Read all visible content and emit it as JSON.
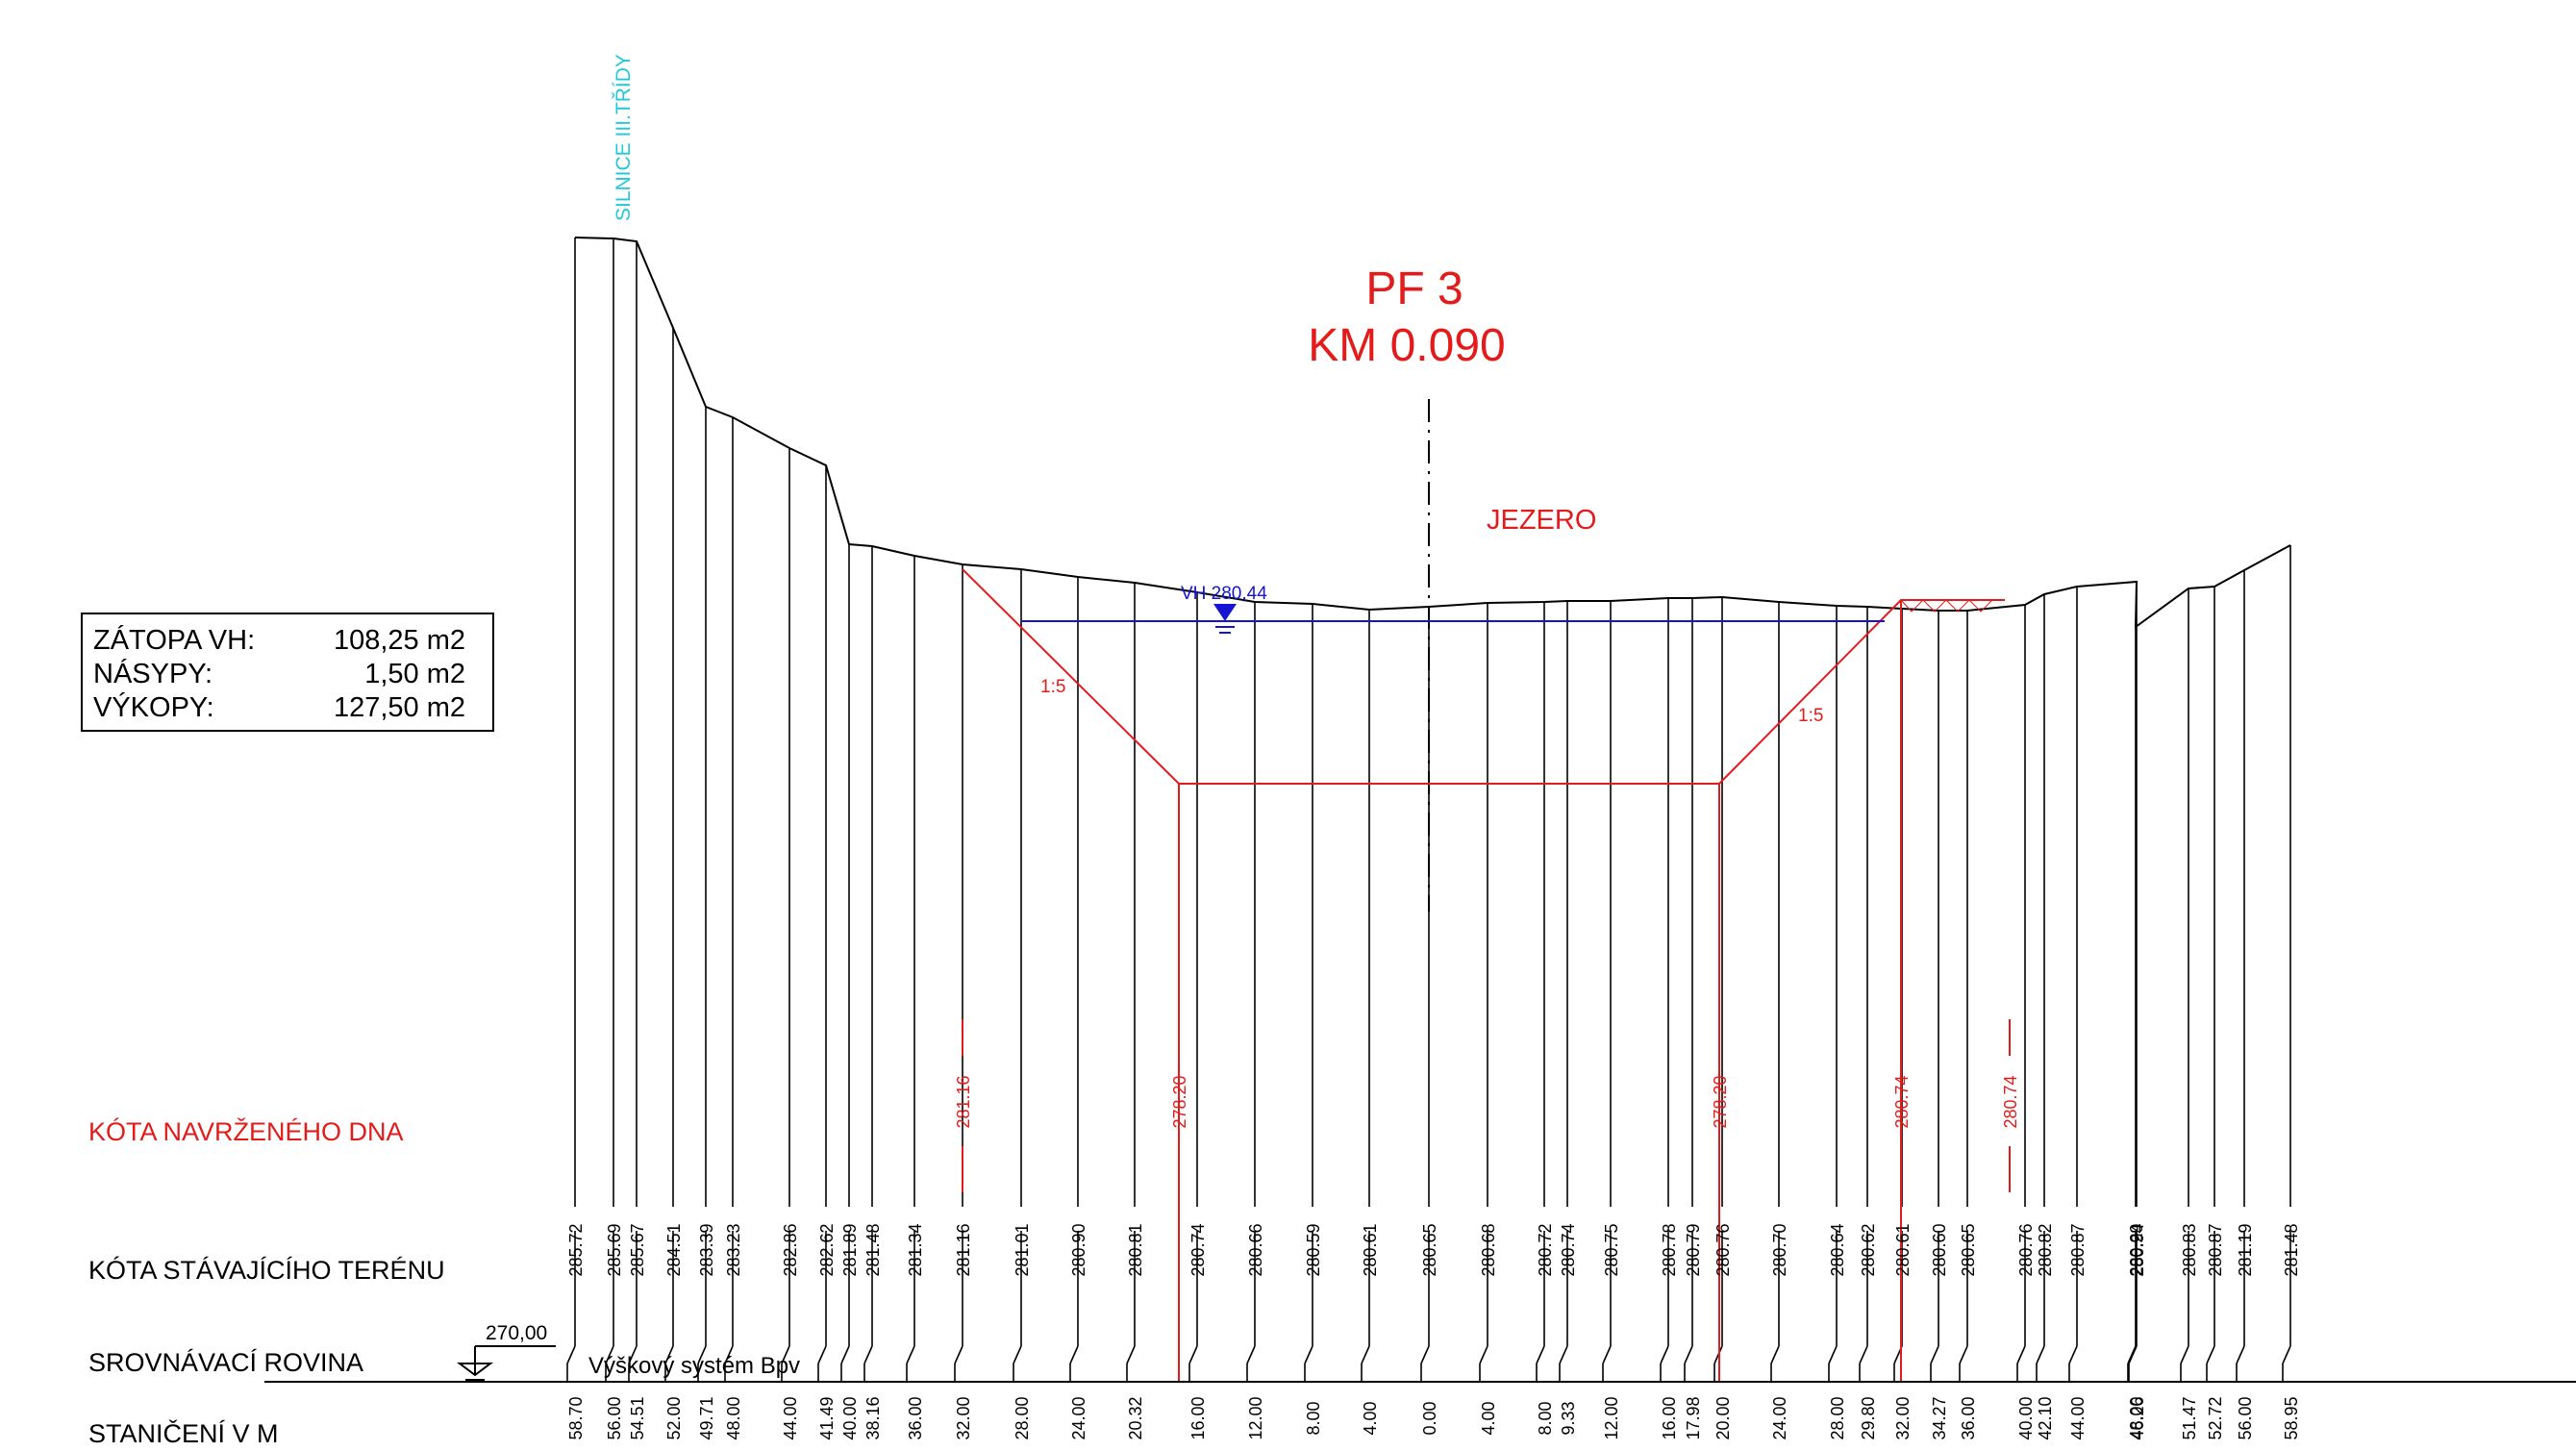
{
  "title": {
    "profile": "PF 3",
    "km": "KM 0.090"
  },
  "lake_label": "JEZERO",
  "road_label": "SILNICE  III.TŘÍDY",
  "water_level": {
    "label": "VH 280,44",
    "elevation": 280.44
  },
  "slope_left": "1:5",
  "slope_right": "1:5",
  "areas": [
    {
      "name": "ZÁTOPA VH:",
      "value": "108,25 m2"
    },
    {
      "name": "NÁSYPY:",
      "value": "1,50 m2"
    },
    {
      "name": "VÝKOPY:",
      "value": "127,50 m2"
    }
  ],
  "rows": {
    "design": "KÓTA NAVRŽENÉHO DNA",
    "terrain": "KÓTA STÁVAJÍCÍHO TERÉNU",
    "datum": "SROVNÁVACÍ ROVINA",
    "station": "STANIČENÍ V M"
  },
  "datum": {
    "label": "270,00",
    "system": "Výškový systém Bpv"
  },
  "colors": {
    "terrain": "#000000",
    "design": "#e31b1b",
    "water": "#1414d2",
    "road": "#22c8d8"
  },
  "terrain_points": [
    {
      "station": "58.70",
      "elev": "285.72"
    },
    {
      "station": "56.00",
      "elev": "285.69"
    },
    {
      "station": "54.51",
      "elev": "285.67"
    },
    {
      "station": "52.00",
      "elev": "284.51"
    },
    {
      "station": "49.71",
      "elev": "283.39"
    },
    {
      "station": "48.00",
      "elev": "283.23"
    },
    {
      "station": "44.00",
      "elev": "282.86"
    },
    {
      "station": "41.49",
      "elev": "282.62"
    },
    {
      "station": "40.00",
      "elev": "281.89"
    },
    {
      "station": "38.16",
      "elev": "281.48"
    },
    {
      "station": "36.00",
      "elev": "281.34"
    },
    {
      "station": "32.00",
      "elev": "281.16"
    },
    {
      "station": "28.00",
      "elev": "281.01"
    },
    {
      "station": "24.00",
      "elev": "280.90"
    },
    {
      "station": "20.32",
      "elev": "280.81"
    },
    {
      "station": "16.00",
      "elev": "280.74"
    },
    {
      "station": "12.00",
      "elev": "280.66"
    },
    {
      "station": "8.00",
      "elev": "280.59"
    },
    {
      "station": "4.00",
      "elev": "280.61"
    },
    {
      "station": "0.00",
      "elev": "280.65"
    },
    {
      "station": "4.00",
      "elev": "280.68"
    },
    {
      "station": "8.00",
      "elev": "280.72"
    },
    {
      "station": "9.33",
      "elev": "280.74"
    },
    {
      "station": "12.00",
      "elev": "280.75"
    },
    {
      "station": "16.00",
      "elev": "280.78"
    },
    {
      "station": "17.98",
      "elev": "280.79"
    },
    {
      "station": "20.00",
      "elev": "280.76"
    },
    {
      "station": "24.00",
      "elev": "280.70"
    },
    {
      "station": "28.00",
      "elev": "280.64"
    },
    {
      "station": "29.80",
      "elev": "280.62"
    },
    {
      "station": "32.00",
      "elev": "280.61"
    },
    {
      "station": "34.27",
      "elev": "280.60"
    },
    {
      "station": "36.00",
      "elev": "280.65"
    },
    {
      "station": "40.00",
      "elev": "280.76"
    },
    {
      "station": "42.10",
      "elev": "280.82"
    },
    {
      "station": "44.00",
      "elev": "280.87"
    },
    {
      "station": "46.26",
      "elev": "280.94"
    },
    {
      "station": "48.00",
      "elev": "280.29"
    },
    {
      "station": "51.47",
      "elev": "280.83"
    },
    {
      "station": "52.72",
      "elev": "280.87"
    },
    {
      "station": "56.00",
      "elev": "281.19"
    },
    {
      "station": "58.95",
      "elev": "281.48"
    }
  ],
  "design_points": [
    {
      "station": "32.00",
      "elev": "281.16"
    },
    {
      "station": "16.00",
      "elev": "278.20"
    },
    {
      "station": "20.00",
      "elev": "278.20"
    },
    {
      "station": "32.00",
      "elev": "280.74"
    },
    {
      "station": "40.00",
      "elev": "280.74"
    }
  ]
}
